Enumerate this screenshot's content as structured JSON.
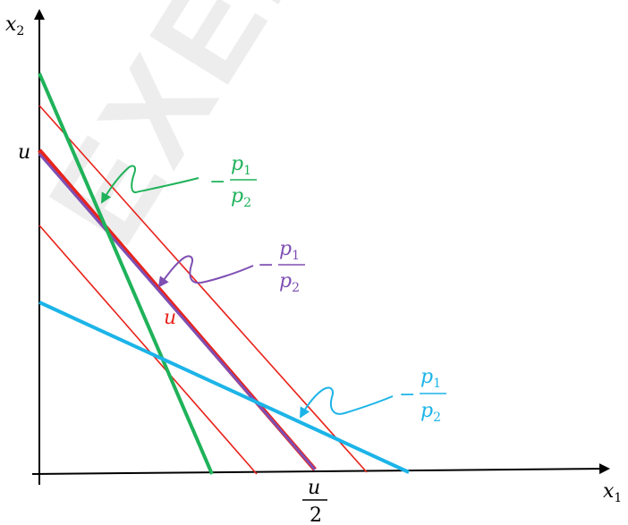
{
  "watermark": "EXEMPLAR",
  "axes": {
    "x_label": "x",
    "x_sub": "1",
    "y_label": "x",
    "y_sub": "2",
    "y_intercept_label": "u",
    "x_tick_numerator": "u",
    "x_tick_denominator": "2"
  },
  "indifference_label": "u",
  "annotations": {
    "green": {
      "prefix": "−",
      "num": "p",
      "num_sub": "1",
      "den": "p",
      "den_sub": "2"
    },
    "purple": {
      "prefix": "−",
      "num": "p",
      "num_sub": "1",
      "den": "p",
      "den_sub": "2"
    },
    "blue": {
      "prefix": "−",
      "num": "p",
      "num_sub": "1",
      "den": "p",
      "den_sub": "2"
    }
  },
  "colors": {
    "axis": "#000000",
    "red": "#e8231b",
    "green": "#1fb25a",
    "purple": "#7f4fb3",
    "blue": "#1cb4e8"
  }
}
